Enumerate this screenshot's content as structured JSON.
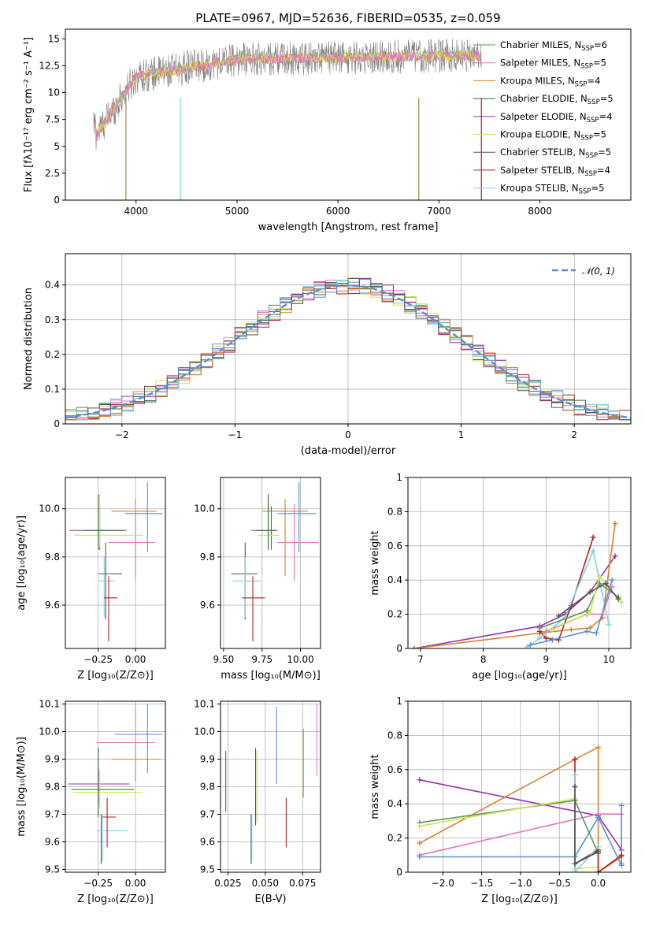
{
  "figure": {
    "title": "PLATE=0967, MJD=52636, FIBERID=0535, z=0.059"
  },
  "chart_data": [
    {
      "id": "spectrum",
      "type": "line",
      "xlabel": "wavelength [Angstrom, rest frame]",
      "ylabel": "Flux [fλ10⁻¹⁷ erg cm⁻² s⁻¹ A⁻¹]",
      "xlim": [
        3300,
        8900
      ],
      "ylim": [
        0,
        15.9
      ],
      "xticks": [
        4000,
        5000,
        6000,
        7000,
        8000
      ],
      "yticks": [
        0.0,
        2.5,
        5.0,
        7.5,
        10.0,
        12.5,
        15.0
      ],
      "grid": false,
      "legend_position": "upper-right",
      "legend": [
        {
          "label": "Chabrier MILES, N",
          "sub": "SSP",
          "suffix": "=6",
          "color": "#5a9a5a"
        },
        {
          "label": "Salpeter MILES, N",
          "sub": "SSP",
          "suffix": "=5",
          "color": "#e377c2"
        },
        {
          "label": "Kroupa MILES, N",
          "sub": "SSP",
          "suffix": "=4",
          "color": "#d9822b"
        },
        {
          "label": "Chabrier ELODIE, N",
          "sub": "SSP",
          "suffix": "=5",
          "color": "#2f6b2f"
        },
        {
          "label": "Salpeter ELODIE, N",
          "sub": "SSP",
          "suffix": "=4",
          "color": "#9b30b0"
        },
        {
          "label": "Kroupa ELODIE, N",
          "sub": "SSP",
          "suffix": "=5",
          "color": "#d4e157"
        },
        {
          "label": "Chabrier STELIB, N",
          "sub": "SSP",
          "suffix": "=5",
          "color": "#555555"
        },
        {
          "label": "Salpeter STELIB, N",
          "sub": "SSP",
          "suffix": "=4",
          "color": "#b22222"
        },
        {
          "label": "Kroupa STELIB, N",
          "sub": "SSP",
          "suffix": "=5",
          "color": "#7fd3df"
        }
      ]
    },
    {
      "id": "residuals",
      "type": "line",
      "xlabel": "(data-model)/error",
      "ylabel": "Normed distribution",
      "xlim": [
        -2.5,
        2.5
      ],
      "ylim": [
        0,
        0.49
      ],
      "xticks": [
        -2,
        -1,
        0,
        1,
        2
      ],
      "yticks": [
        0.0,
        0.1,
        0.2,
        0.3,
        0.4
      ],
      "grid": true,
      "legend_label": "𝒩(0, 1)",
      "gaussian": {
        "mean": 0,
        "sigma": 1,
        "color": "#5b8fd6"
      }
    },
    {
      "id": "age-vs-Z",
      "type": "scatter",
      "xlabel": "Z [log₁₀(Z/Z⊙)]",
      "ylabel": "age  [log₁₀(age/yr)]",
      "xlim": [
        -0.47,
        0.2
      ],
      "ylim": [
        9.42,
        10.13
      ],
      "xticks": [
        -0.25,
        0.0
      ],
      "xticklabels": [
        "−0.25",
        "0.00"
      ],
      "yticks": [
        9.6,
        9.8,
        10.0
      ],
      "yticklabels": [
        "9.6",
        "9.8",
        "10.0"
      ],
      "grid": true,
      "points": [
        {
          "x": 0.0,
          "y": 9.99,
          "xlo": -0.16,
          "xhi": 0.14,
          "ylo": 9.72,
          "yhi": 10.04,
          "color": "#d9822b"
        },
        {
          "x": 0.08,
          "y": 9.98,
          "xlo": -0.07,
          "xhi": 0.18,
          "ylo": 9.82,
          "yhi": 10.11,
          "color": "#5b8fd6"
        },
        {
          "x": 0.0,
          "y": 9.86,
          "xlo": -0.18,
          "xhi": 0.13,
          "ylo": 9.7,
          "yhi": 10.02,
          "color": "#e377c2"
        },
        {
          "x": -0.24,
          "y": 9.91,
          "xlo": -0.44,
          "xhi": -0.06,
          "ylo": 9.83,
          "yhi": 10.01,
          "color": "#9b30b0"
        },
        {
          "x": -0.24,
          "y": 9.89,
          "xlo": -0.41,
          "xhi": 0.05,
          "ylo": 9.84,
          "yhi": 10.06,
          "color": "#d4e157"
        },
        {
          "x": -0.25,
          "y": 9.91,
          "xlo": -0.35,
          "xhi": -0.08,
          "ylo": 9.83,
          "yhi": 10.06,
          "color": "#2f6b2f"
        },
        {
          "x": -0.2,
          "y": 9.73,
          "xlo": -0.25,
          "xhi": -0.09,
          "ylo": 9.54,
          "yhi": 9.86,
          "color": "#555555"
        },
        {
          "x": -0.21,
          "y": 9.7,
          "xlo": -0.25,
          "xhi": -0.14,
          "ylo": 9.55,
          "yhi": 9.8,
          "color": "#7fd3df"
        },
        {
          "x": -0.18,
          "y": 9.63,
          "xlo": -0.21,
          "xhi": -0.12,
          "ylo": 9.45,
          "yhi": 9.72,
          "color": "#b22222"
        }
      ]
    },
    {
      "id": "age-vs-mass",
      "type": "scatter",
      "xlabel": "mass [log₁₀(M/M⊙)]",
      "ylabel": "",
      "xlim": [
        9.48,
        10.13
      ],
      "ylim": [
        9.42,
        10.13
      ],
      "xticks": [
        9.5,
        9.75,
        10.0
      ],
      "xticklabels": [
        "9.50",
        "9.75",
        "10.00"
      ],
      "yticks": [
        9.6,
        9.8,
        10.0
      ],
      "yticklabels": [
        "9.6",
        "9.8",
        "10.0"
      ],
      "grid": true,
      "points": [
        {
          "x": 9.9,
          "y": 9.99,
          "xlo": 9.75,
          "xhi": 10.05,
          "ylo": 9.72,
          "yhi": 10.04,
          "color": "#d9822b"
        },
        {
          "x": 9.99,
          "y": 9.98,
          "xlo": 9.85,
          "xhi": 10.1,
          "ylo": 9.82,
          "yhi": 10.11,
          "color": "#5b8fd6"
        },
        {
          "x": 9.96,
          "y": 9.86,
          "xlo": 9.85,
          "xhi": 10.12,
          "ylo": 9.7,
          "yhi": 10.02,
          "color": "#e377c2"
        },
        {
          "x": 9.81,
          "y": 9.91,
          "xlo": 9.68,
          "xhi": 9.85,
          "ylo": 9.83,
          "yhi": 10.01,
          "color": "#9b30b0"
        },
        {
          "x": 9.79,
          "y": 9.89,
          "xlo": 9.72,
          "xhi": 9.86,
          "ylo": 9.84,
          "yhi": 10.06,
          "color": "#d4e157"
        },
        {
          "x": 9.79,
          "y": 9.91,
          "xlo": 9.71,
          "xhi": 9.84,
          "ylo": 9.83,
          "yhi": 10.06,
          "color": "#2f6b2f"
        },
        {
          "x": 9.64,
          "y": 9.73,
          "xlo": 9.55,
          "xhi": 9.72,
          "ylo": 9.54,
          "yhi": 9.86,
          "color": "#555555"
        },
        {
          "x": 9.64,
          "y": 9.7,
          "xlo": 9.56,
          "xhi": 9.74,
          "ylo": 9.55,
          "yhi": 9.8,
          "color": "#7fd3df"
        },
        {
          "x": 9.69,
          "y": 9.63,
          "xlo": 9.62,
          "xhi": 9.77,
          "ylo": 9.45,
          "yhi": 9.72,
          "color": "#b22222"
        }
      ]
    },
    {
      "id": "massweight-vs-age",
      "type": "line",
      "xlabel": "age  [log₁₀(age/yr)]",
      "ylabel": "mass weight",
      "xlim": [
        6.8,
        10.35
      ],
      "ylim": [
        0,
        1.0
      ],
      "xticks": [
        7,
        8,
        9,
        10
      ],
      "yticks": [
        0.0,
        0.2,
        0.4,
        0.6,
        0.8,
        1.0
      ],
      "grid": true,
      "series": [
        {
          "color": "#9b30b0",
          "points": [
            [
              6.9,
              0.0
            ],
            [
              8.9,
              0.13
            ],
            [
              9.3,
              0.2
            ],
            [
              9.7,
              0.33
            ],
            [
              10.1,
              0.54
            ]
          ]
        },
        {
          "color": "#d9822b",
          "points": [
            [
              6.9,
              0.0
            ],
            [
              8.9,
              0.09
            ],
            [
              9.4,
              0.11
            ],
            [
              9.7,
              0.12
            ],
            [
              9.9,
              0.18
            ],
            [
              10.1,
              0.73
            ]
          ]
        },
        {
          "color": "#b22222",
          "points": [
            [
              8.9,
              0.1
            ],
            [
              9.0,
              0.06
            ],
            [
              9.2,
              0.05
            ],
            [
              9.4,
              0.25
            ],
            [
              9.75,
              0.65
            ]
          ]
        },
        {
          "color": "#7fd3df",
          "points": [
            [
              8.7,
              0.01
            ],
            [
              8.9,
              0.06
            ],
            [
              9.3,
              0.18
            ],
            [
              9.75,
              0.57
            ],
            [
              10.0,
              0.14
            ]
          ]
        },
        {
          "color": "#5b8fd6",
          "points": [
            [
              8.75,
              0.02
            ],
            [
              9.1,
              0.05
            ],
            [
              9.65,
              0.1
            ],
            [
              9.8,
              0.09
            ],
            [
              10.05,
              0.4
            ]
          ]
        },
        {
          "color": "#e377c2",
          "points": [
            [
              9.0,
              0.1
            ],
            [
              9.65,
              0.2
            ],
            [
              9.9,
              0.2
            ],
            [
              10.05,
              0.36
            ]
          ]
        },
        {
          "color": "#5a9a5a",
          "points": [
            [
              8.9,
              0.12
            ],
            [
              9.65,
              0.22
            ],
            [
              9.85,
              0.38
            ],
            [
              10.15,
              0.3
            ]
          ]
        },
        {
          "color": "#d4e157",
          "points": [
            [
              9.1,
              0.11
            ],
            [
              9.7,
              0.21
            ],
            [
              9.85,
              0.42
            ],
            [
              10.2,
              0.27
            ]
          ]
        },
        {
          "color": "#555555",
          "points": [
            [
              9.2,
              0.19
            ],
            [
              9.7,
              0.33
            ],
            [
              9.95,
              0.38
            ],
            [
              10.15,
              0.29
            ]
          ]
        }
      ]
    },
    {
      "id": "mass-vs-Z",
      "type": "scatter",
      "xlabel": "Z [log₁₀(Z/Z⊙)]",
      "ylabel": "mass [log₁₀(M/M⊙)]",
      "xlim": [
        -0.47,
        0.2
      ],
      "ylim": [
        9.49,
        10.11
      ],
      "xticks": [
        -0.25,
        0.0
      ],
      "xticklabels": [
        "−0.25",
        "0.00"
      ],
      "yticks": [
        9.5,
        9.6,
        9.7,
        9.8,
        9.9,
        10.0,
        10.1
      ],
      "yticklabels": [
        "9.5",
        "9.6",
        "9.7",
        "9.8",
        "9.9",
        "10.0",
        "10.1"
      ],
      "grid": true,
      "points": [
        {
          "x": 0.0,
          "y": 9.9,
          "xlo": -0.16,
          "xhi": 0.17,
          "ylo": 9.82,
          "yhi": 9.97,
          "color": "#d9822b"
        },
        {
          "x": 0.08,
          "y": 9.99,
          "xlo": -0.14,
          "xhi": 0.18,
          "ylo": 9.85,
          "yhi": 10.1,
          "color": "#5b8fd6"
        },
        {
          "x": 0.0,
          "y": 9.96,
          "xlo": -0.26,
          "xhi": 0.13,
          "ylo": 9.85,
          "yhi": 10.1,
          "color": "#e377c2"
        },
        {
          "x": -0.25,
          "y": 9.81,
          "xlo": -0.45,
          "xhi": -0.04,
          "ylo": 9.74,
          "yhi": 9.87,
          "color": "#9b30b0"
        },
        {
          "x": -0.24,
          "y": 9.78,
          "xlo": -0.42,
          "xhi": 0.04,
          "ylo": 9.72,
          "yhi": 9.86,
          "color": "#d4e157"
        },
        {
          "x": -0.25,
          "y": 9.79,
          "xlo": -0.43,
          "xhi": -0.01,
          "ylo": 9.69,
          "yhi": 9.94,
          "color": "#2f6b2f"
        },
        {
          "x": -0.23,
          "y": 9.64,
          "xlo": -0.26,
          "xhi": -0.1,
          "ylo": 9.52,
          "yhi": 9.7,
          "color": "#555555"
        },
        {
          "x": -0.22,
          "y": 9.64,
          "xlo": -0.26,
          "xhi": -0.05,
          "ylo": 9.53,
          "yhi": 9.7,
          "color": "#7fd3df"
        },
        {
          "x": -0.19,
          "y": 9.69,
          "xlo": -0.22,
          "xhi": -0.13,
          "ylo": 9.58,
          "yhi": 9.76,
          "color": "#b22222"
        }
      ]
    },
    {
      "id": "mass-vs-ebv",
      "type": "scatter",
      "xlabel": "E(B-V)",
      "ylabel": "",
      "xlim": [
        0.02,
        0.087
      ],
      "ylim": [
        9.49,
        10.11
      ],
      "xticks": [
        0.025,
        0.05,
        0.075
      ],
      "xticklabels": [
        "0.025",
        "0.050",
        "0.075"
      ],
      "yticks": [
        9.5,
        9.6,
        9.7,
        9.8,
        9.9,
        10.0,
        10.1
      ],
      "yticklabels": [
        "9.5",
        "9.6",
        "9.7",
        "9.8",
        "9.9",
        "10.0",
        "10.1"
      ],
      "grid": true,
      "points": [
        {
          "x": 0.0235,
          "ylo": 9.71,
          "yhi": 9.93,
          "color": "#9b30b0"
        },
        {
          "x": 0.0405,
          "ylo": 9.52,
          "yhi": 9.7,
          "color": "#555555"
        },
        {
          "x": 0.041,
          "ylo": 9.53,
          "yhi": 9.7,
          "color": "#7fd3df"
        },
        {
          "x": 0.0435,
          "ylo": 9.66,
          "yhi": 9.94,
          "color": "#2f6b2f"
        },
        {
          "x": 0.0445,
          "ylo": 9.67,
          "yhi": 9.93,
          "color": "#d4e157"
        },
        {
          "x": 0.0575,
          "ylo": 9.81,
          "yhi": 10.09,
          "color": "#5b8fd6"
        },
        {
          "x": 0.064,
          "ylo": 9.58,
          "yhi": 9.76,
          "color": "#b22222"
        },
        {
          "x": 0.0755,
          "ylo": 9.76,
          "yhi": 10.01,
          "color": "#d9822b"
        },
        {
          "x": 0.0845,
          "ylo": 9.84,
          "yhi": 10.1,
          "color": "#e377c2"
        }
      ]
    },
    {
      "id": "massweight-vs-Z",
      "type": "line",
      "xlabel": "Z [log₁₀(Z/Z⊙)]",
      "ylabel": "mass weight",
      "xlim": [
        -2.45,
        0.42
      ],
      "ylim": [
        0,
        1.0
      ],
      "xticks": [
        -2.0,
        -1.5,
        -1.0,
        -0.5,
        0.0
      ],
      "xticklabels": [
        "−2.0",
        "−1.5",
        "−1.0",
        "−0.5",
        "0.0"
      ],
      "yticks": [
        0.0,
        0.2,
        0.4,
        0.6,
        0.8,
        1.0
      ],
      "grid": true,
      "series": [
        {
          "color": "#9b30b0",
          "points": [
            [
              -2.3,
              0.54
            ],
            [
              0.0,
              0.33
            ],
            [
              0.3,
              0.13
            ]
          ]
        },
        {
          "color": "#d9822b",
          "points": [
            [
              -2.3,
              0.17
            ],
            [
              -0.3,
              0.66
            ],
            [
              0.0,
              0.73
            ],
            [
              0.0,
              0.0
            ],
            [
              0.3,
              0.09
            ]
          ]
        },
        {
          "color": "#e377c2",
          "points": [
            [
              -2.3,
              0.1
            ],
            [
              0.0,
              0.34
            ],
            [
              0.3,
              0.34
            ],
            [
              0.3,
              0.05
            ]
          ]
        },
        {
          "color": "#5b8fd6",
          "points": [
            [
              -2.3,
              0.09
            ],
            [
              -0.3,
              0.09
            ],
            [
              0.0,
              0.32
            ],
            [
              0.3,
              0.04
            ],
            [
              0.3,
              0.39
            ]
          ]
        },
        {
          "color": "#5a9a5a",
          "points": [
            [
              -2.3,
              0.29
            ],
            [
              -0.3,
              0.42
            ],
            [
              0.0,
              0.11
            ]
          ]
        },
        {
          "color": "#d4e157",
          "points": [
            [
              -2.3,
              0.27
            ],
            [
              -0.3,
              0.43
            ],
            [
              -0.3,
              0.02
            ],
            [
              0.0,
              0.03
            ]
          ]
        },
        {
          "color": "#b22222",
          "points": [
            [
              -0.3,
              0.66
            ],
            [
              -0.3,
              0.05
            ],
            [
              0.0,
              0.13
            ],
            [
              0.0,
              0.0
            ],
            [
              0.3,
              0.1
            ]
          ]
        },
        {
          "color": "#7fd3df",
          "points": [
            [
              -0.3,
              0.57
            ],
            [
              -0.3,
              0.0
            ],
            [
              0.0,
              0.15
            ]
          ]
        },
        {
          "color": "#555555",
          "points": [
            [
              -0.3,
              0.5
            ],
            [
              -0.3,
              0.05
            ],
            [
              0.0,
              0.12
            ]
          ]
        }
      ]
    }
  ]
}
